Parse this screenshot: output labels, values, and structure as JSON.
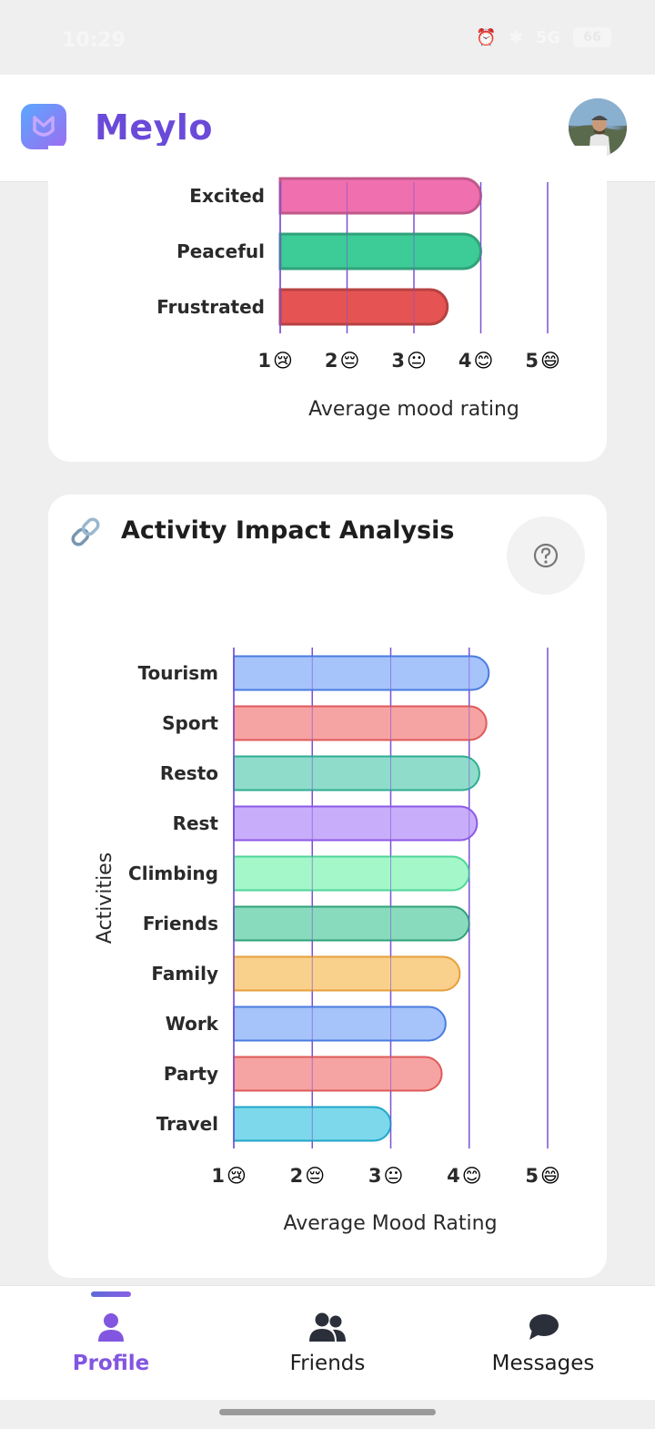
{
  "status_bar": {
    "time": "10:29",
    "network": "5G",
    "battery": "66",
    "icons": [
      "alarm-icon",
      "bluetooth-icon",
      "signal-icon",
      "battery-icon"
    ]
  },
  "header": {
    "app_name": "Meylo",
    "logo_icon": "meylo-logo-icon",
    "avatar": "user-avatar"
  },
  "colors": {
    "brand": "#6a4ad8",
    "nav_active": "#8256e0",
    "gridline": "#7a52d6"
  },
  "emotion_chart": {
    "chart_data": {
      "type": "bar",
      "orientation": "horizontal",
      "categories": [
        "Excited",
        "Peaceful",
        "Frustrated"
      ],
      "values": [
        4.0,
        4.0,
        3.5
      ],
      "colors": [
        "#f06fae",
        "#3dcb97",
        "#e55353"
      ],
      "xlabel": "Average mood rating",
      "ylabel": "",
      "xlim": [
        1,
        5
      ],
      "ticks": [
        "1",
        "2",
        "3",
        "4",
        "5"
      ],
      "tick_emojis": [
        "😢",
        "😔",
        "😐",
        "😊",
        "😄"
      ],
      "grid": true
    }
  },
  "activity_card": {
    "title": "Activity Impact Analysis",
    "title_icon": "link-icon",
    "help_icon": "help-icon",
    "chart_data": {
      "type": "bar",
      "orientation": "horizontal",
      "categories": [
        "Tourism",
        "Sport",
        "Resto",
        "Rest",
        "Climbing",
        "Friends",
        "Family",
        "Work",
        "Party",
        "Travel"
      ],
      "values": [
        4.25,
        4.22,
        4.13,
        4.1,
        4.0,
        4.0,
        3.88,
        3.7,
        3.65,
        3.0
      ],
      "colors": [
        "#a6c3fa",
        "#f6a3a3",
        "#8fdccb",
        "#c8aefa",
        "#a3f7c9",
        "#88dcbd",
        "#fad08d",
        "#a6c3fa",
        "#f6a3a3",
        "#7cd8ea"
      ],
      "stroke_colors": [
        "#4a7ce0",
        "#e05a5a",
        "#2fae93",
        "#8c5ae8",
        "#4fd69a",
        "#2fa07a",
        "#e6a03a",
        "#4a7ce0",
        "#e05a5a",
        "#1fa6c8"
      ],
      "xlabel": "Average Mood Rating",
      "ylabel": "Activities",
      "xlim": [
        1,
        5
      ],
      "ticks": [
        "1",
        "2",
        "3",
        "4",
        "5"
      ],
      "tick_emojis": [
        "😢",
        "😔",
        "😐",
        "😊",
        "😄"
      ],
      "grid": true
    }
  },
  "bottom_nav": {
    "items": [
      {
        "label": "Profile",
        "icon": "user-icon",
        "active": true
      },
      {
        "label": "Friends",
        "icon": "friends-icon",
        "active": false
      },
      {
        "label": "Messages",
        "icon": "chat-icon",
        "active": false
      }
    ]
  }
}
